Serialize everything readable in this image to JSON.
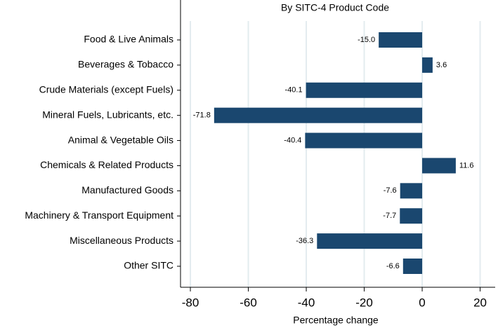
{
  "chart_data": {
    "type": "barh",
    "title": "By SITC-4 Product Code",
    "xlabel": "Percentage change",
    "categories": [
      "Food & Live Animals",
      "Beverages & Tobacco",
      "Crude Materials (except Fuels)",
      "Mineral Fuels, Lubricants, etc.",
      "Animal & Vegetable Oils",
      "Chemicals & Related Products",
      "Manufactured Goods",
      "Machinery & Transport Equipment",
      "Miscellaneous Products",
      "Other SITC"
    ],
    "values": [
      -15.0,
      3.6,
      -40.1,
      -71.8,
      -40.4,
      11.6,
      -7.6,
      -7.7,
      -36.3,
      -6.6
    ],
    "value_labels": [
      "-15.0",
      "3.6",
      "-40.1",
      "-71.8",
      "-40.4",
      "11.6",
      "-7.6",
      "-7.7",
      "-36.3",
      "-6.6"
    ],
    "color": "#1a476f",
    "xlim": [
      -83.4,
      25.2
    ],
    "xticks": [
      -80,
      -60,
      -40,
      -20,
      0,
      20
    ],
    "grid": true
  }
}
